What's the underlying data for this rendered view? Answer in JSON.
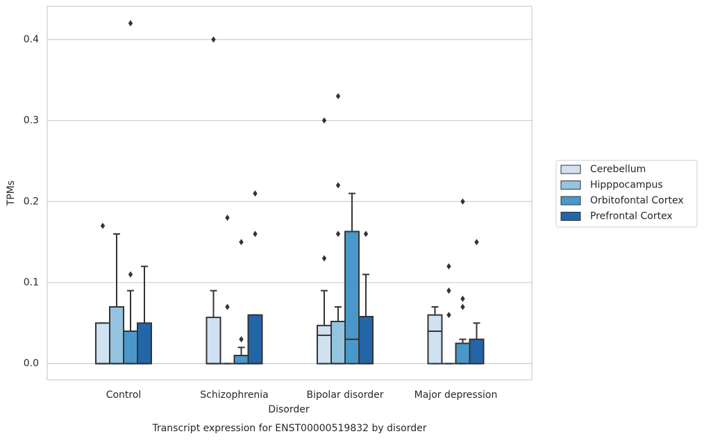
{
  "chart_data": {
    "type": "box",
    "title": "Transcript expression for ENST00000519832 by disorder",
    "x_label": "Disorder",
    "y_label": "TPMs",
    "categories": [
      "Control",
      "Schizophrenia",
      "Bipolar disorder",
      "Major depression"
    ],
    "ylim": [
      -0.02,
      0.441
    ],
    "yticks": [
      {
        "value": 0,
        "label": "0.0"
      },
      0.1,
      0.2,
      0.3,
      0.4
    ],
    "grid": true,
    "legend": "right",
    "series": [
      {
        "name": "Cerebellum",
        "color": "#d0e1f2",
        "values": [
          {
            "low": 0,
            "q1": 0,
            "median": 0,
            "q3": 0.05,
            "high": 0.05,
            "outliers": [
              0.17
            ]
          },
          {
            "low": 0,
            "q1": 0,
            "median": 0,
            "q3": 0.057,
            "high": 0.09,
            "outliers": [
              0.4
            ]
          },
          {
            "low": 0,
            "q1": 0,
            "median": 0.035,
            "q3": 0.047,
            "high": 0.09,
            "outliers": [
              0.13,
              0.3
            ]
          },
          {
            "low": 0,
            "q1": 0,
            "median": 0.04,
            "q3": 0.06,
            "high": 0.07,
            "outliers": []
          }
        ]
      },
      {
        "name": "Hipppocampus",
        "color": "#94c4df",
        "values": [
          {
            "low": 0,
            "q1": 0,
            "median": 0,
            "q3": 0.07,
            "high": 0.16,
            "outliers": []
          },
          {
            "low": 0,
            "q1": 0,
            "median": 0,
            "q3": 0,
            "high": 0,
            "outliers": [
              0.07,
              0.18
            ]
          },
          {
            "low": 0,
            "q1": 0,
            "median": 0,
            "q3": 0.052,
            "high": 0.07,
            "outliers": [
              0.16,
              0.22,
              0.33
            ]
          },
          {
            "low": 0,
            "q1": 0,
            "median": 0,
            "q3": 0,
            "high": 0,
            "outliers": [
              0.06,
              0.09,
              0.12
            ]
          }
        ]
      },
      {
        "name": "Orbitofontal Cortex",
        "color": "#4a98c9",
        "values": [
          {
            "low": 0,
            "q1": 0,
            "median": 0,
            "q3": 0.04,
            "high": 0.09,
            "outliers": [
              0.11,
              0.42
            ]
          },
          {
            "low": 0,
            "q1": 0,
            "median": 0,
            "q3": 0.01,
            "high": 0.02,
            "outliers": [
              0.03,
              0.15
            ]
          },
          {
            "low": 0,
            "q1": 0,
            "median": 0.03,
            "q3": 0.163,
            "high": 0.21,
            "outliers": []
          },
          {
            "low": 0,
            "q1": 0,
            "median": 0,
            "q3": 0.025,
            "high": 0.03,
            "outliers": [
              0.07,
              0.08,
              0.2
            ]
          }
        ]
      },
      {
        "name": "Prefrontal Cortex",
        "color": "#2366a8",
        "values": [
          {
            "low": 0,
            "q1": 0,
            "median": 0,
            "q3": 0.05,
            "high": 0.12,
            "outliers": []
          },
          {
            "low": 0,
            "q1": 0,
            "median": 0,
            "q3": 0.06,
            "high": 0.06,
            "outliers": [
              0.16,
              0.21
            ]
          },
          {
            "low": 0,
            "q1": 0,
            "median": 0,
            "q3": 0.058,
            "high": 0.11,
            "outliers": [
              0.16
            ]
          },
          {
            "low": 0,
            "q1": 0,
            "median": 0,
            "q3": 0.03,
            "high": 0.05,
            "outliers": [
              0.15
            ]
          }
        ]
      }
    ]
  }
}
